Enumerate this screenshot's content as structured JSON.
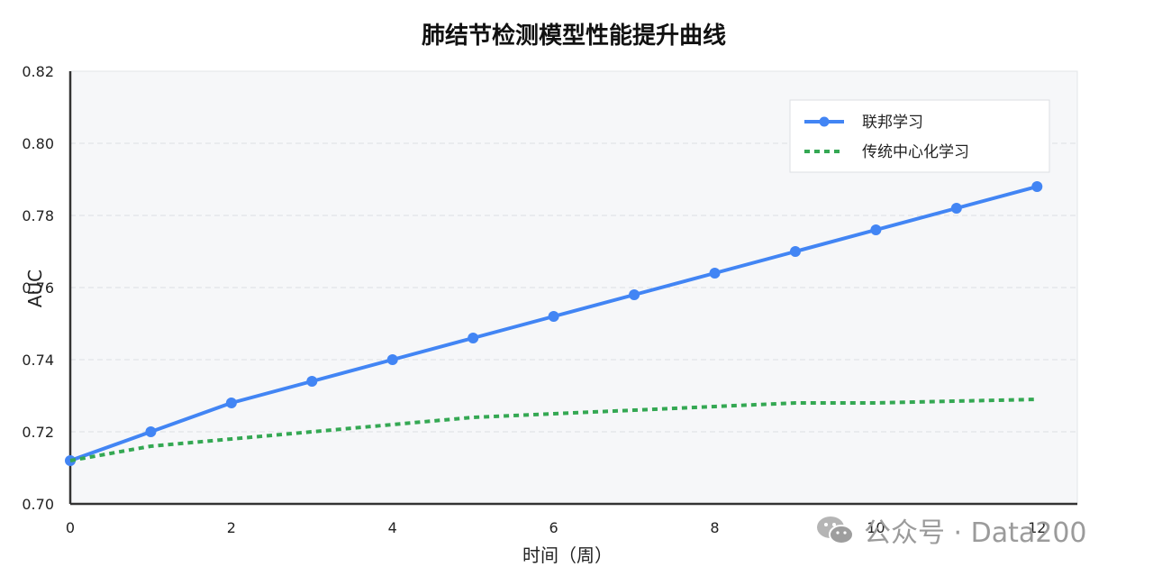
{
  "chart_data": {
    "type": "line",
    "title": "肺结节检测模型性能提升曲线",
    "xlabel": "时间（周）",
    "ylabel": "AUC",
    "x": [
      0,
      1,
      2,
      3,
      4,
      5,
      6,
      7,
      8,
      9,
      10,
      11,
      12
    ],
    "x_ticks": [
      "0",
      "2",
      "4",
      "6",
      "8",
      "10",
      "12"
    ],
    "y_ticks": [
      "0.70",
      "0.72",
      "0.74",
      "0.76",
      "0.78",
      "0.80",
      "0.82"
    ],
    "xlim": [
      0,
      12.5
    ],
    "ylim": [
      0.7,
      0.82
    ],
    "grid": "horizontal-dashed",
    "legend_position": "top-right",
    "series": [
      {
        "name": "联邦学习",
        "style": "solid-markers",
        "color": "#4285f4",
        "values": [
          0.712,
          0.72,
          0.728,
          0.734,
          0.74,
          0.746,
          0.752,
          0.758,
          0.764,
          0.77,
          0.776,
          0.782,
          0.788
        ]
      },
      {
        "name": "传统中心化学习",
        "style": "dotted",
        "color": "#34a853",
        "values": [
          0.712,
          0.716,
          0.718,
          0.72,
          0.722,
          0.724,
          0.725,
          0.726,
          0.727,
          0.728,
          0.728,
          0.7285,
          0.729
        ]
      }
    ]
  },
  "watermark": {
    "text": "公众号 · Data200",
    "icon": "wechat-icon"
  }
}
